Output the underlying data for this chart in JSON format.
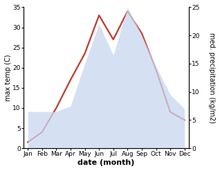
{
  "months": [
    "Jan",
    "Feb",
    "Mar",
    "Apr",
    "May",
    "Jun",
    "Jul",
    "Aug",
    "Sep",
    "Oct",
    "Nov",
    "Dec"
  ],
  "month_positions": [
    0,
    1,
    2,
    3,
    4,
    5,
    6,
    7,
    8,
    9,
    10,
    11
  ],
  "temperature": [
    1.5,
    4.0,
    10.0,
    17.0,
    23.5,
    33.0,
    27.0,
    34.0,
    28.5,
    19.5,
    9.0,
    7.0
  ],
  "precipitation": [
    6.5,
    6.5,
    6.5,
    7.5,
    15.0,
    22.0,
    16.5,
    25.0,
    20.0,
    14.5,
    9.5,
    7.0
  ],
  "temp_color": "#c0392b",
  "precip_fill_color": "#c8d8f0",
  "precip_fill_alpha": 0.75,
  "temp_linewidth": 1.6,
  "ylabel_left": "max temp (C)",
  "ylabel_right": "med. precipitation (kg/m2)",
  "xlabel": "date (month)",
  "ylim_left": [
    0,
    35
  ],
  "ylim_right": [
    0,
    25
  ],
  "yticks_left": [
    0,
    5,
    10,
    15,
    20,
    25,
    30,
    35
  ],
  "yticks_right": [
    0,
    5,
    10,
    15,
    20,
    25
  ],
  "background_color": "#ffffff",
  "label_fontsize": 7.0,
  "tick_fontsize": 6.5,
  "xlabel_fontsize": 8.0
}
